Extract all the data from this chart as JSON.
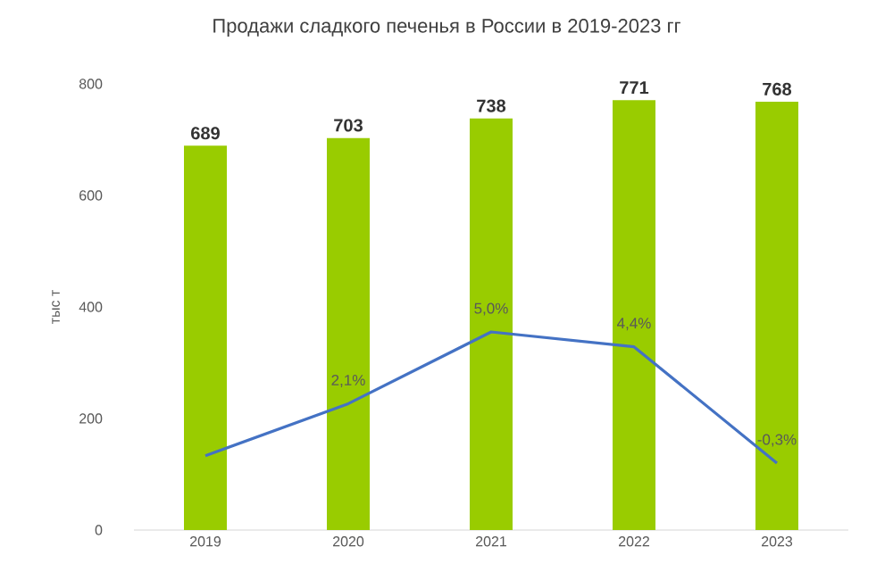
{
  "chart_data": {
    "type": "bar",
    "title": "Продажи сладкого печенья в России в 2019-2023 гг",
    "ylabel": "тыс т",
    "categories": [
      "2019",
      "2020",
      "2021",
      "2022",
      "2023"
    ],
    "ylim": [
      0,
      800
    ],
    "yticks": [
      0,
      200,
      400,
      600,
      800
    ],
    "series": [
      {
        "color": "#99cc00",
        "values": [
          689,
          703,
          738,
          771,
          768
        ],
        "data_labels": true
      },
      {
        "type": "line",
        "axis": "y2",
        "color": "#4472c4",
        "values": [
          0.0,
          2.1,
          5.0,
          4.4,
          -0.3
        ],
        "value_labels": [
          null,
          "2,1%",
          "5,0%",
          "4,4%",
          "-0,3%"
        ]
      }
    ]
  }
}
